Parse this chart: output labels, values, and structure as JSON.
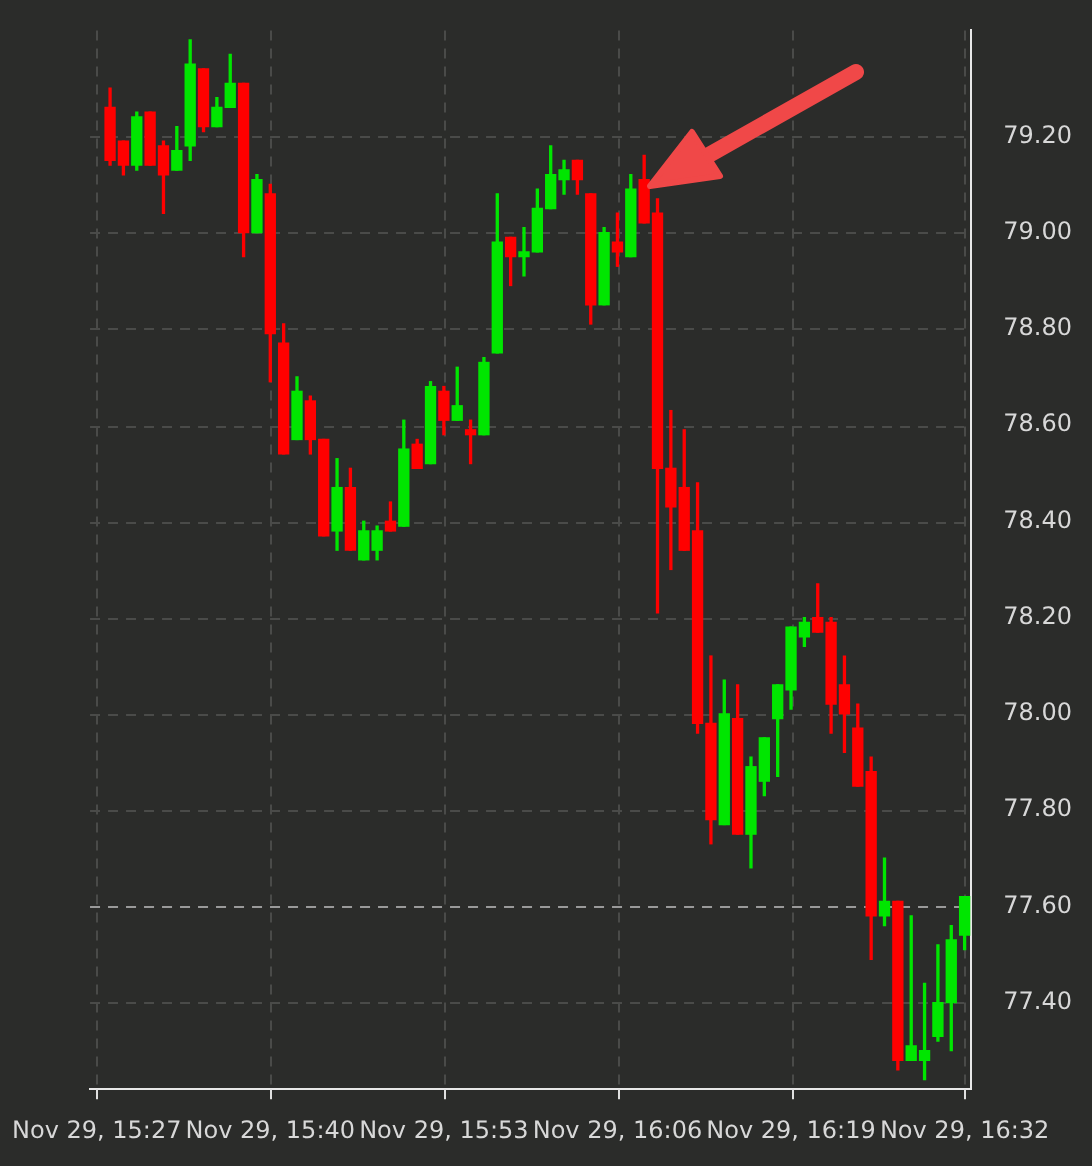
{
  "chart_data": {
    "type": "candlestick",
    "categories": [
      "Nov 29, 15:27",
      null,
      null,
      null,
      null,
      null,
      null,
      null,
      null,
      null,
      null,
      null,
      null,
      "Nov 29, 15:40",
      null,
      null,
      null,
      null,
      null,
      null,
      null,
      null,
      null,
      null,
      null,
      null,
      "Nov 29, 15:53",
      null,
      null,
      null,
      null,
      null,
      null,
      null,
      null,
      null,
      null,
      null,
      null,
      "Nov 29, 16:06",
      null,
      null,
      null,
      null,
      null,
      null,
      null,
      null,
      null,
      null,
      null,
      null,
      "Nov 29, 16:19",
      null,
      null,
      null,
      null,
      null,
      null,
      null,
      null,
      null,
      null,
      null,
      null,
      "Nov 29, 16:32"
    ],
    "ohlc": [
      null,
      [
        79.26,
        79.3,
        79.14,
        79.15
      ],
      [
        79.19,
        79.19,
        79.12,
        79.14
      ],
      [
        79.14,
        79.25,
        79.13,
        79.24
      ],
      [
        79.25,
        79.25,
        79.14,
        79.14
      ],
      [
        79.18,
        79.19,
        79.04,
        79.12
      ],
      [
        79.13,
        79.22,
        79.13,
        79.17
      ],
      [
        79.18,
        79.4,
        79.15,
        79.35
      ],
      [
        79.34,
        79.34,
        79.21,
        79.22
      ],
      [
        79.22,
        79.28,
        79.22,
        79.26
      ],
      [
        79.26,
        79.37,
        79.26,
        79.31
      ],
      [
        79.31,
        79.31,
        78.95,
        79.0
      ],
      [
        79.0,
        79.12,
        79.0,
        79.11
      ],
      [
        79.08,
        79.1,
        78.69,
        78.79
      ],
      [
        78.77,
        78.81,
        78.54,
        78.54
      ],
      [
        78.57,
        78.7,
        78.57,
        78.67
      ],
      [
        78.65,
        78.66,
        78.54,
        78.57
      ],
      [
        78.57,
        78.57,
        78.37,
        78.37
      ],
      [
        78.38,
        78.53,
        78.34,
        78.47
      ],
      [
        78.47,
        78.51,
        78.34,
        78.34
      ],
      [
        78.32,
        78.4,
        78.32,
        78.38
      ],
      [
        78.34,
        78.39,
        78.32,
        78.38
      ],
      [
        78.4,
        78.44,
        78.38,
        78.38
      ],
      [
        78.39,
        78.61,
        78.39,
        78.55
      ],
      [
        78.56,
        78.57,
        78.51,
        78.51
      ],
      [
        78.52,
        78.69,
        78.52,
        78.68
      ],
      [
        78.67,
        78.68,
        78.58,
        78.61
      ],
      [
        78.61,
        78.72,
        78.61,
        78.64
      ],
      [
        78.59,
        78.61,
        78.52,
        78.58
      ],
      [
        78.58,
        78.74,
        78.58,
        78.73
      ],
      [
        78.75,
        79.08,
        78.75,
        78.98
      ],
      [
        78.99,
        78.99,
        78.89,
        78.95
      ],
      [
        78.95,
        79.01,
        78.91,
        78.96
      ],
      [
        78.96,
        79.09,
        78.96,
        79.05
      ],
      [
        79.05,
        79.18,
        79.05,
        79.12
      ],
      [
        79.11,
        79.15,
        79.08,
        79.13
      ],
      [
        79.15,
        79.15,
        79.08,
        79.11
      ],
      [
        79.08,
        79.08,
        78.81,
        78.85
      ],
      [
        78.85,
        79.01,
        78.85,
        79.0
      ],
      [
        78.98,
        79.04,
        78.93,
        78.96
      ],
      [
        78.95,
        79.12,
        78.95,
        79.09
      ],
      [
        79.11,
        79.16,
        79.02,
        79.02
      ],
      [
        79.04,
        79.07,
        78.21,
        78.51
      ],
      [
        78.51,
        78.63,
        78.3,
        78.43
      ],
      [
        78.47,
        78.59,
        78.34,
        78.34
      ],
      [
        78.38,
        78.48,
        77.96,
        77.98
      ],
      [
        77.98,
        78.12,
        77.73,
        77.78
      ],
      [
        77.77,
        78.07,
        77.77,
        78.0
      ],
      [
        77.99,
        78.06,
        77.75,
        77.75
      ],
      [
        77.75,
        77.91,
        77.68,
        77.89
      ],
      [
        77.86,
        77.95,
        77.83,
        77.95
      ],
      [
        77.99,
        78.06,
        77.87,
        78.06
      ],
      [
        78.05,
        78.18,
        78.01,
        78.18
      ],
      [
        78.16,
        78.2,
        78.14,
        78.19
      ],
      [
        78.2,
        78.27,
        78.17,
        78.17
      ],
      [
        78.19,
        78.2,
        77.96,
        78.02
      ],
      [
        78.06,
        78.12,
        77.92,
        78.0
      ],
      [
        77.97,
        78.02,
        77.85,
        77.85
      ],
      [
        77.88,
        77.91,
        77.49,
        77.58
      ],
      [
        77.58,
        77.7,
        77.56,
        77.61
      ],
      [
        77.61,
        77.61,
        77.26,
        77.28
      ],
      [
        77.28,
        77.58,
        77.28,
        77.31
      ],
      [
        77.28,
        77.44,
        77.24,
        77.3
      ],
      [
        77.33,
        77.52,
        77.32,
        77.4
      ],
      [
        77.4,
        77.56,
        77.3,
        77.53
      ],
      [
        77.54,
        77.62,
        77.51,
        77.62
      ]
    ],
    "colors": [
      null,
      "#ff0000",
      "#ff0000",
      "#00e600",
      "#ff0000",
      "#ff0000",
      "#00e600",
      "#00e600",
      "#ff0000",
      "#00e600",
      "#00e600",
      "#ff0000",
      "#00e600",
      "#ff0000",
      "#ff0000",
      "#00e600",
      "#ff0000",
      "#ff0000",
      "#00e600",
      "#ff0000",
      "#00e600",
      "#00e600",
      "#ff0000",
      "#00e600",
      "#ff0000",
      "#00e600",
      "#ff0000",
      "#00e600",
      "#ff0000",
      "#00e600",
      "#00e600",
      "#ff0000",
      "#00e600",
      "#00e600",
      "#00e600",
      "#00e600",
      "#ff0000",
      "#ff0000",
      "#00e600",
      "#ff0000",
      "#00e600",
      "#ff0000",
      "#ff0000",
      "#ff0000",
      "#ff0000",
      "#ff0000",
      "#ff0000",
      "#00e600",
      "#ff0000",
      "#00e600",
      "#00e600",
      "#00e600",
      "#00e600",
      "#00e600",
      "#ff0000",
      "#ff0000",
      "#ff0000",
      "#ff0000",
      "#ff0000",
      "#00e600",
      "#ff0000",
      "#00e600",
      "#00e600",
      "#00e600",
      "#00e600",
      "#00e600"
    ],
    "ylim": [
      77.22,
      79.42
    ],
    "yticks": [
      {
        "value": 77.4,
        "label": "77.40"
      },
      {
        "value": 77.6,
        "label": "77.60"
      },
      {
        "value": 77.8,
        "label": "77.80"
      },
      {
        "value": 78.0,
        "label": "78.00"
      },
      {
        "value": 78.2,
        "label": "78.20"
      },
      {
        "value": 78.4,
        "label": "78.40"
      },
      {
        "value": 78.6,
        "label": "78.60"
      },
      {
        "value": 78.8,
        "label": "78.80"
      },
      {
        "value": 79.0,
        "label": "79.00"
      },
      {
        "value": 79.2,
        "label": "79.20"
      }
    ],
    "ref_lines": [
      {
        "axis": "y",
        "value": 77.6,
        "label": null,
        "color": "#9a9a9a",
        "line_style": "dashed"
      }
    ],
    "grid": true
  }
}
